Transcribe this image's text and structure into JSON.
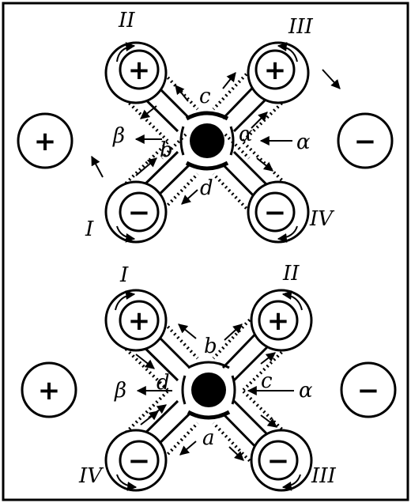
{
  "panels": [
    {
      "pole_left": "+",
      "pole_right": "−",
      "rotor_labels": {
        "tl": "II",
        "tr": "III",
        "bl": "I",
        "br": "IV"
      },
      "rotor_signs": {
        "tl": "+",
        "tr": "+",
        "bl": "−",
        "br": "−"
      },
      "labels": {
        "top": "c",
        "bottom": "d",
        "left_inner": "b",
        "right_inner": "α",
        "left_outer": "β",
        "right_outer": "α"
      }
    },
    {
      "pole_left": "+",
      "pole_right": "−",
      "rotor_labels": {
        "tl": "I",
        "tr": "II",
        "bl": "IV",
        "br": "III"
      },
      "rotor_signs": {
        "tl": "+",
        "tr": "+",
        "bl": "−",
        "br": "−"
      },
      "labels": {
        "top": "b",
        "bottom": "a",
        "left_inner": "d",
        "right_inner": "c",
        "left_outer": "β",
        "right_outer": "α"
      }
    }
  ]
}
